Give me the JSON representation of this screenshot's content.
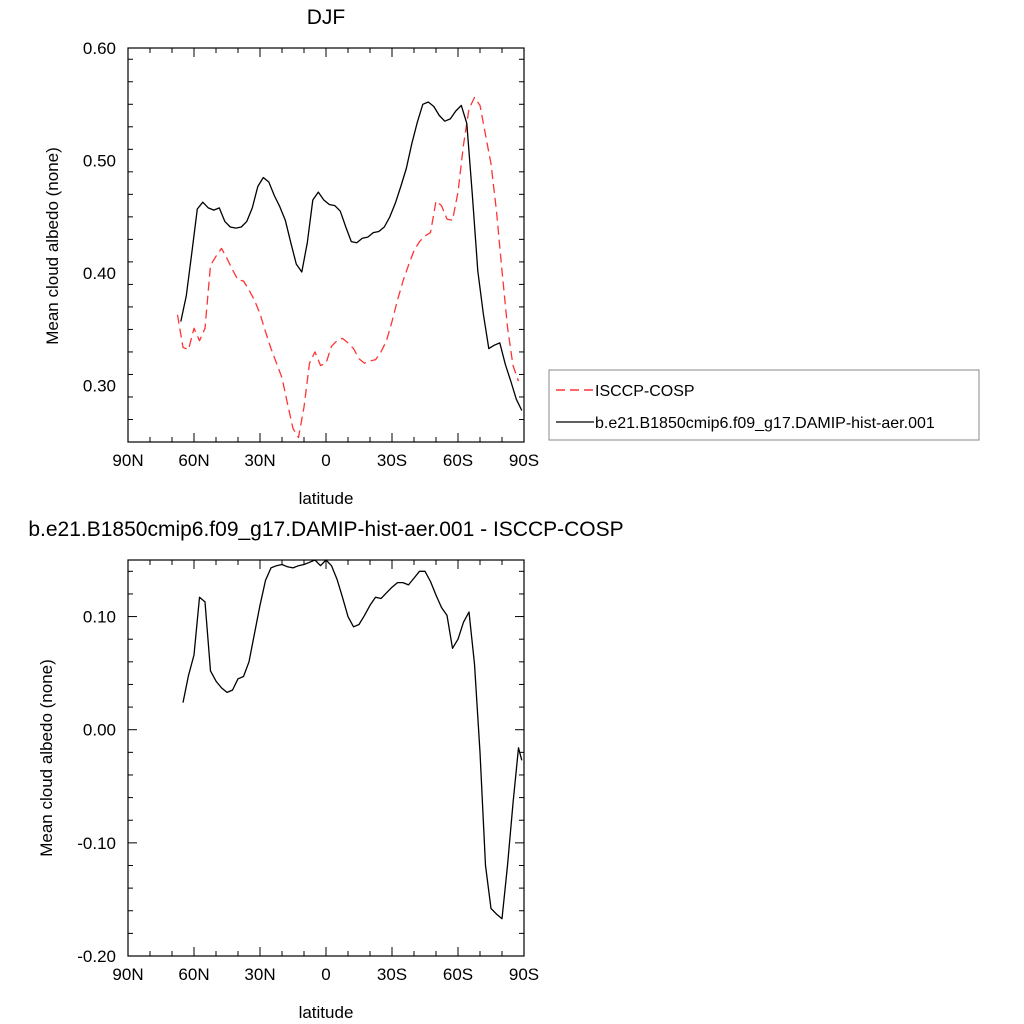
{
  "colors": {
    "model": "#000000",
    "obs": "#ff3333",
    "frame": "#000000",
    "legend_border": "#888888"
  },
  "chart_data": [
    {
      "type": "line",
      "title": "DJF",
      "xlabel": "latitude",
      "ylabel": "Mean cloud albedo (none)",
      "xlim": [
        90,
        -90
      ],
      "ylim": [
        0.25,
        0.6
      ],
      "xticks": [
        {
          "value": 90,
          "label": "90N"
        },
        {
          "value": 60,
          "label": "60N"
        },
        {
          "value": 30,
          "label": "30N"
        },
        {
          "value": 0,
          "label": "0"
        },
        {
          "value": -30,
          "label": "30S"
        },
        {
          "value": -60,
          "label": "60S"
        },
        {
          "value": -90,
          "label": "90S"
        }
      ],
      "yticks": [
        {
          "value": 0.3,
          "label": "0.30"
        },
        {
          "value": 0.4,
          "label": "0.40"
        },
        {
          "value": 0.5,
          "label": "0.50"
        },
        {
          "value": 0.6,
          "label": "0.60"
        }
      ],
      "legend": {
        "placement": "right"
      },
      "series": [
        {
          "name": "ISCCP-COSP",
          "style": "dashed",
          "color": "#ff3333",
          "x": [
            67.5,
            65,
            62.5,
            60,
            57.5,
            55,
            52.5,
            50,
            47.5,
            45,
            42.5,
            40,
            37.5,
            35,
            32.5,
            30,
            27.5,
            25,
            22.5,
            20,
            17.5,
            15,
            12.5,
            10,
            7.5,
            5,
            2.5,
            0,
            -2.5,
            -5,
            -7.5,
            -10,
            -12.5,
            -15,
            -17.5,
            -20,
            -22.5,
            -25,
            -27.5,
            -30,
            -32.5,
            -35,
            -37.5,
            -40,
            -42.5,
            -45,
            -47.5,
            -50,
            -52.5,
            -55,
            -57.5,
            -60,
            -62.5,
            -65,
            -67.5,
            -70,
            -72.5,
            -75,
            -77.5,
            -80,
            -82.5,
            -85,
            -87.5
          ],
          "values": [
            0.363,
            0.334,
            0.332,
            0.351,
            0.34,
            0.351,
            0.407,
            0.415,
            0.422,
            0.413,
            0.403,
            0.394,
            0.393,
            0.385,
            0.376,
            0.364,
            0.348,
            0.333,
            0.32,
            0.307,
            0.284,
            0.262,
            0.254,
            0.281,
            0.32,
            0.33,
            0.318,
            0.32,
            0.335,
            0.34,
            0.342,
            0.338,
            0.333,
            0.324,
            0.32,
            0.322,
            0.323,
            0.33,
            0.34,
            0.357,
            0.376,
            0.393,
            0.407,
            0.42,
            0.428,
            0.433,
            0.436,
            0.464,
            0.46,
            0.448,
            0.447,
            0.472,
            0.514,
            0.546,
            0.556,
            0.549,
            0.523,
            0.497,
            0.455,
            0.402,
            0.352,
            0.318,
            0.304
          ]
        },
        {
          "name": "b.e21.B1850cmip6.f09_g17.DAMIP-hist-aer.001",
          "style": "solid",
          "color": "#000000",
          "x": [
            66,
            63.5,
            61,
            58.5,
            56,
            53.5,
            51,
            48.5,
            46,
            43.5,
            41,
            38.5,
            36,
            33.5,
            31,
            28.5,
            26,
            23.5,
            21,
            18.5,
            16,
            13.5,
            11,
            8.5,
            6,
            3.5,
            1,
            -1.5,
            -4,
            -6.5,
            -9,
            -11.5,
            -14,
            -16.5,
            -19,
            -21.5,
            -24,
            -26.5,
            -29,
            -31.5,
            -34,
            -36.5,
            -39,
            -41.5,
            -44,
            -46.5,
            -49,
            -51.5,
            -54,
            -56.5,
            -59,
            -61.5,
            -64,
            -66.5,
            -69,
            -71.5,
            -74,
            -76.5,
            -79,
            -81.5,
            -84,
            -86.5,
            -89
          ],
          "values": [
            0.357,
            0.38,
            0.418,
            0.457,
            0.463,
            0.458,
            0.456,
            0.458,
            0.446,
            0.441,
            0.44,
            0.441,
            0.446,
            0.458,
            0.477,
            0.485,
            0.481,
            0.469,
            0.459,
            0.447,
            0.427,
            0.408,
            0.401,
            0.427,
            0.465,
            0.472,
            0.465,
            0.461,
            0.46,
            0.455,
            0.441,
            0.428,
            0.427,
            0.431,
            0.432,
            0.436,
            0.437,
            0.441,
            0.45,
            0.462,
            0.477,
            0.493,
            0.515,
            0.534,
            0.55,
            0.552,
            0.548,
            0.54,
            0.535,
            0.537,
            0.544,
            0.549,
            0.533,
            0.47,
            0.402,
            0.364,
            0.333,
            0.336,
            0.338,
            0.319,
            0.304,
            0.288,
            0.278
          ]
        }
      ]
    },
    {
      "type": "line",
      "title": "b.e21.B1850cmip6.f09_g17.DAMIP-hist-aer.001 - ISCCP-COSP",
      "xlabel": "latitude",
      "ylabel": "Mean cloud albedo (none)",
      "xlim": [
        90,
        -90
      ],
      "ylim": [
        -0.2,
        0.15
      ],
      "xticks": [
        {
          "value": 90,
          "label": "90N"
        },
        {
          "value": 60,
          "label": "60N"
        },
        {
          "value": 30,
          "label": "30N"
        },
        {
          "value": 0,
          "label": "0"
        },
        {
          "value": -30,
          "label": "30S"
        },
        {
          "value": -60,
          "label": "60S"
        },
        {
          "value": -90,
          "label": "90S"
        }
      ],
      "yticks": [
        {
          "value": -0.2,
          "label": "-0.20"
        },
        {
          "value": -0.1,
          "label": "-0.10"
        },
        {
          "value": 0.0,
          "label": "0.00"
        },
        {
          "value": 0.1,
          "label": "0.10"
        }
      ],
      "series": [
        {
          "style": "solid",
          "color": "#000000",
          "x": [
            65,
            62.5,
            60,
            57.5,
            55,
            52.5,
            50,
            47.5,
            45,
            42.5,
            40,
            37.5,
            35,
            32.5,
            30,
            27.5,
            25,
            22.5,
            20,
            17.5,
            15,
            12.5,
            10,
            7.5,
            5,
            2.5,
            0,
            -2.5,
            -5,
            -7.5,
            -10,
            -12.5,
            -15,
            -17.5,
            -20,
            -22.5,
            -25,
            -27.5,
            -30,
            -32.5,
            -35,
            -37.5,
            -40,
            -42.5,
            -45,
            -47.5,
            -50,
            -52.5,
            -55,
            -57.5,
            -60,
            -62.5,
            -65,
            -67.5,
            -70,
            -72.5,
            -75,
            -77.5,
            -80,
            -82.5,
            -85,
            -87.5,
            -89
          ],
          "values": [
            0.024,
            0.048,
            0.066,
            0.117,
            0.113,
            0.052,
            0.043,
            0.037,
            0.033,
            0.035,
            0.045,
            0.047,
            0.06,
            0.085,
            0.11,
            0.132,
            0.143,
            0.145,
            0.146,
            0.144,
            0.143,
            0.145,
            0.146,
            0.148,
            0.15,
            0.145,
            0.15,
            0.145,
            0.133,
            0.117,
            0.1,
            0.091,
            0.093,
            0.101,
            0.11,
            0.117,
            0.116,
            0.121,
            0.126,
            0.13,
            0.13,
            0.128,
            0.134,
            0.14,
            0.14,
            0.131,
            0.119,
            0.108,
            0.101,
            0.072,
            0.08,
            0.095,
            0.104,
            0.058,
            -0.02,
            -0.12,
            -0.158,
            -0.163,
            -0.167,
            -0.12,
            -0.065,
            -0.016,
            -0.027
          ]
        }
      ]
    }
  ]
}
